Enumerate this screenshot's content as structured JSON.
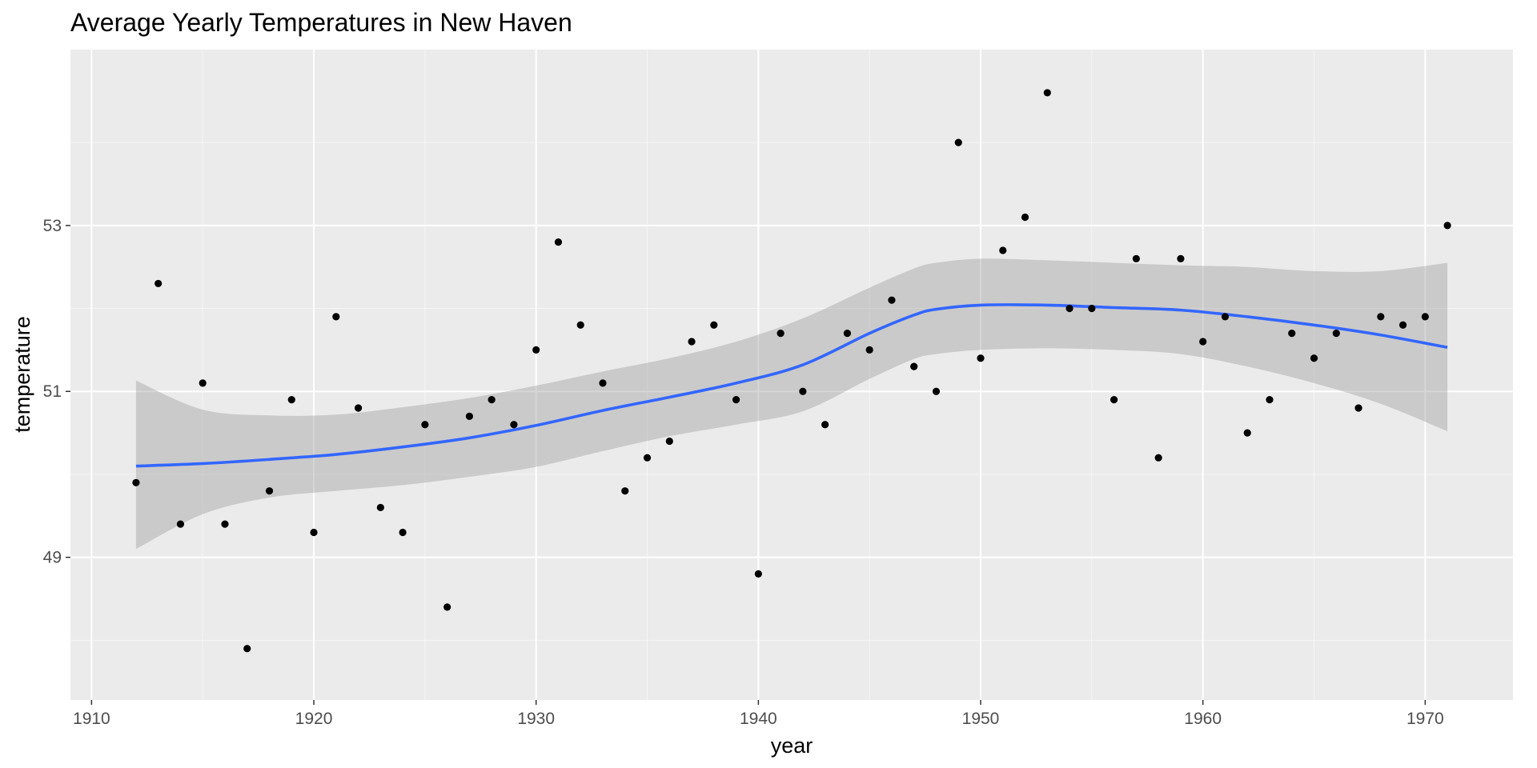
{
  "chart_data": {
    "type": "scatter",
    "title": "Average Yearly Temperatures in New Haven",
    "xlabel": "year",
    "ylabel": "temperature",
    "xlim": [
      1909.05,
      1973.95
    ],
    "ylim": [
      47.28,
      55.12
    ],
    "x_ticks": [
      1910,
      1920,
      1930,
      1940,
      1950,
      1960,
      1970
    ],
    "x_tick_labels": [
      "1910",
      "1920",
      "1930",
      "1940",
      "1950",
      "1960",
      "1970"
    ],
    "y_ticks": [
      49,
      51,
      53
    ],
    "y_tick_labels": [
      "49",
      "51",
      "53"
    ],
    "grid": true,
    "colors": {
      "panel": "#ebebeb",
      "grid_major": "#ffffff",
      "points": "#000000",
      "smooth_line": "#3366ff",
      "confidence_band": "#999999",
      "tick_text": "#4d4d4d",
      "tick_mark": "#333333"
    },
    "points": [
      {
        "x": 1912,
        "y": 49.9
      },
      {
        "x": 1913,
        "y": 52.3
      },
      {
        "x": 1914,
        "y": 49.4
      },
      {
        "x": 1915,
        "y": 51.1
      },
      {
        "x": 1916,
        "y": 49.4
      },
      {
        "x": 1917,
        "y": 47.9
      },
      {
        "x": 1918,
        "y": 49.8
      },
      {
        "x": 1919,
        "y": 50.9
      },
      {
        "x": 1920,
        "y": 49.3
      },
      {
        "x": 1921,
        "y": 51.9
      },
      {
        "x": 1922,
        "y": 50.8
      },
      {
        "x": 1923,
        "y": 49.6
      },
      {
        "x": 1924,
        "y": 49.3
      },
      {
        "x": 1925,
        "y": 50.6
      },
      {
        "x": 1926,
        "y": 48.4
      },
      {
        "x": 1927,
        "y": 50.7
      },
      {
        "x": 1928,
        "y": 50.9
      },
      {
        "x": 1929,
        "y": 50.6
      },
      {
        "x": 1930,
        "y": 51.5
      },
      {
        "x": 1931,
        "y": 52.8
      },
      {
        "x": 1932,
        "y": 51.8
      },
      {
        "x": 1933,
        "y": 51.1
      },
      {
        "x": 1934,
        "y": 49.8
      },
      {
        "x": 1935,
        "y": 50.2
      },
      {
        "x": 1936,
        "y": 50.4
      },
      {
        "x": 1937,
        "y": 51.6
      },
      {
        "x": 1938,
        "y": 51.8
      },
      {
        "x": 1939,
        "y": 50.9
      },
      {
        "x": 1940,
        "y": 48.8
      },
      {
        "x": 1941,
        "y": 51.7
      },
      {
        "x": 1942,
        "y": 51.0
      },
      {
        "x": 1943,
        "y": 50.6
      },
      {
        "x": 1944,
        "y": 51.7
      },
      {
        "x": 1945,
        "y": 51.5
      },
      {
        "x": 1946,
        "y": 52.1
      },
      {
        "x": 1947,
        "y": 51.3
      },
      {
        "x": 1948,
        "y": 51.0
      },
      {
        "x": 1949,
        "y": 54.0
      },
      {
        "x": 1950,
        "y": 51.4
      },
      {
        "x": 1951,
        "y": 52.7
      },
      {
        "x": 1952,
        "y": 53.1
      },
      {
        "x": 1953,
        "y": 54.6
      },
      {
        "x": 1954,
        "y": 52.0
      },
      {
        "x": 1955,
        "y": 52.0
      },
      {
        "x": 1956,
        "y": 50.9
      },
      {
        "x": 1957,
        "y": 52.6
      },
      {
        "x": 1958,
        "y": 50.2
      },
      {
        "x": 1959,
        "y": 52.6
      },
      {
        "x": 1960,
        "y": 51.6
      },
      {
        "x": 1961,
        "y": 51.9
      },
      {
        "x": 1962,
        "y": 50.5
      },
      {
        "x": 1963,
        "y": 50.9
      },
      {
        "x": 1964,
        "y": 51.7
      },
      {
        "x": 1965,
        "y": 51.4
      },
      {
        "x": 1966,
        "y": 51.7
      },
      {
        "x": 1967,
        "y": 50.8
      },
      {
        "x": 1968,
        "y": 51.9
      },
      {
        "x": 1969,
        "y": 51.8
      },
      {
        "x": 1970,
        "y": 51.9
      },
      {
        "x": 1971,
        "y": 53.0
      }
    ],
    "smooth": {
      "method": "loess",
      "x": [
        1912,
        1915,
        1918,
        1921,
        1924,
        1927,
        1930,
        1933,
        1936,
        1939,
        1942,
        1945,
        1947,
        1948,
        1950,
        1953,
        1956,
        1959,
        1962,
        1965,
        1968,
        1971
      ],
      "y": [
        50.1,
        50.13,
        50.18,
        50.24,
        50.33,
        50.44,
        50.59,
        50.77,
        50.93,
        51.1,
        51.32,
        51.7,
        51.92,
        51.99,
        52.04,
        52.04,
        52.01,
        51.98,
        51.9,
        51.8,
        51.68,
        51.53
      ],
      "lower": [
        49.1,
        49.52,
        49.72,
        49.8,
        49.87,
        49.97,
        50.09,
        50.28,
        50.46,
        50.6,
        50.76,
        51.15,
        51.39,
        51.45,
        51.5,
        51.52,
        51.5,
        51.45,
        51.3,
        51.1,
        50.85,
        50.52
      ],
      "upper": [
        51.13,
        50.78,
        50.71,
        50.72,
        50.81,
        50.92,
        51.07,
        51.24,
        51.4,
        51.6,
        51.88,
        52.25,
        52.48,
        52.55,
        52.6,
        52.58,
        52.55,
        52.52,
        52.5,
        52.45,
        52.45,
        52.55
      ]
    }
  }
}
